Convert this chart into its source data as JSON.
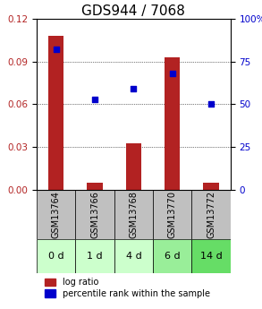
{
  "title": "GDS944 / 7068",
  "categories": [
    "GSM13764",
    "GSM13766",
    "GSM13768",
    "GSM13770",
    "GSM13772"
  ],
  "time_labels": [
    "0 d",
    "1 d",
    "4 d",
    "6 d",
    "14 d"
  ],
  "log_ratio": [
    0.108,
    0.005,
    0.033,
    0.093,
    0.005
  ],
  "percentile": [
    82,
    53,
    59,
    68,
    50
  ],
  "ylim_left": [
    0,
    0.12
  ],
  "ylim_right": [
    0,
    100
  ],
  "yticks_left": [
    0,
    0.03,
    0.06,
    0.09,
    0.12
  ],
  "yticks_right": [
    0,
    25,
    50,
    75,
    100
  ],
  "bar_color": "#b22222",
  "dot_color": "#0000cc",
  "bar_width": 0.4,
  "grid_color": "#000000",
  "title_fontsize": 11,
  "tick_fontsize": 7.5,
  "label_fontsize": 7.5,
  "gsm_label_fontsize": 7,
  "time_fontsize": 8,
  "legend_fontsize": 7,
  "gsm_row_color": "#c0c0c0",
  "time_row_colors": [
    "#ccffcc",
    "#ccffcc",
    "#ccffcc",
    "#99ee99",
    "#66dd66"
  ],
  "time_arrow_color": "#666666"
}
